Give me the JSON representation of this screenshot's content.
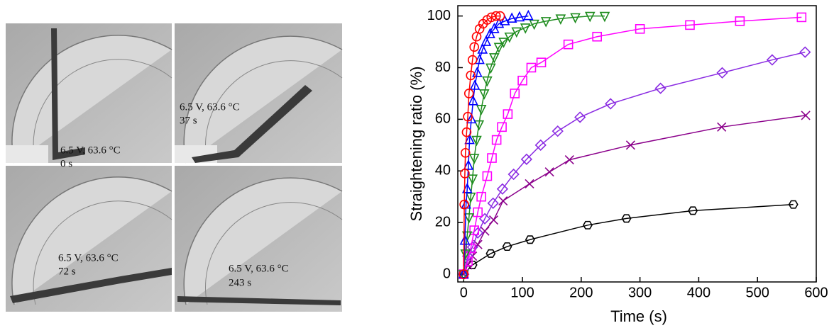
{
  "photos": [
    {
      "caption": "6.5 V, 63.6 °C",
      "time": "0 s"
    },
    {
      "caption": "6.5 V, 63.6 °C",
      "time": "37 s"
    },
    {
      "caption": "6.5 V, 63.6 °C",
      "time": "72 s"
    },
    {
      "caption": "6.5 V, 63.6 °C",
      "time": "243 s"
    }
  ],
  "chart_data": {
    "type": "line",
    "x_label": "Time (s)",
    "y_label": "Straightening ratio (%)",
    "xlim": [
      -10,
      600
    ],
    "ylim": [
      -3,
      104
    ],
    "xticks": [
      0,
      100,
      200,
      300,
      400,
      500,
      600
    ],
    "yticks": [
      0,
      20,
      40,
      60,
      80,
      100
    ],
    "series": [
      {
        "color": "#000000",
        "marker": "hexagon",
        "x": [
          0,
          15,
          46,
          74,
          113,
          211,
          277,
          390,
          561
        ],
        "values": [
          0,
          3.6,
          8,
          10.7,
          13.4,
          19,
          21.6,
          24.6,
          27
        ]
      },
      {
        "color": "#8b008b",
        "marker": "x",
        "x": [
          0,
          7,
          15,
          24,
          36,
          51,
          67,
          112,
          146,
          180,
          284,
          439,
          582
        ],
        "values": [
          0,
          3.6,
          7,
          11.5,
          16.7,
          21,
          28.4,
          35,
          39.6,
          44.3,
          50,
          57,
          61.5
        ]
      },
      {
        "color": "#8a2be2",
        "marker": "diamond",
        "x": [
          0,
          7,
          15,
          24,
          36,
          50,
          66,
          85,
          107,
          131,
          160,
          198,
          250,
          335,
          440,
          525,
          581
        ],
        "values": [
          0,
          7,
          10.5,
          16,
          21.5,
          27.5,
          33,
          38.7,
          44.5,
          50,
          55.4,
          60.8,
          66,
          72,
          78,
          83,
          86
        ]
      },
      {
        "color": "#ff00ff",
        "marker": "square",
        "x": [
          0,
          7,
          12,
          18,
          24,
          30,
          40,
          48,
          56,
          65,
          75,
          87,
          100,
          115,
          132,
          178,
          227,
          300,
          385,
          470,
          575
        ],
        "values": [
          0,
          5,
          10,
          17,
          24,
          30,
          38,
          45,
          52,
          57,
          62,
          70,
          75,
          80,
          82,
          89,
          92,
          95,
          96.5,
          98,
          99.5
        ]
      },
      {
        "color": "#1e8c1e",
        "marker": "triangle-down",
        "x": [
          0,
          3,
          6,
          9,
          12,
          15,
          18,
          22,
          26,
          30,
          35,
          40,
          46,
          52,
          60,
          68,
          78,
          90,
          105,
          120,
          140,
          165,
          190,
          215,
          240
        ],
        "values": [
          0,
          8,
          15,
          22,
          30,
          37,
          45,
          52,
          58,
          64,
          70,
          75,
          80,
          84,
          88,
          90,
          92,
          94,
          95.5,
          97,
          98,
          99,
          99.5,
          100,
          100
        ]
      },
      {
        "color": "#0000ff",
        "marker": "triangle-up",
        "x": [
          0,
          2,
          4,
          6,
          8,
          10,
          13,
          16,
          19,
          23,
          27,
          32,
          38,
          45,
          52,
          60,
          70,
          82,
          95,
          110
        ],
        "values": [
          0,
          13,
          27,
          33,
          42,
          52,
          60,
          67,
          73,
          78,
          83,
          87,
          90,
          93,
          95,
          97,
          98,
          99,
          99.5,
          100
        ]
      },
      {
        "color": "#ff0000",
        "marker": "circle",
        "x": [
          0,
          1,
          2,
          3,
          5,
          7,
          9,
          12,
          15,
          18,
          22,
          27,
          33,
          40,
          47,
          55,
          62
        ],
        "values": [
          0,
          27,
          39,
          47,
          55,
          61,
          70,
          77,
          83,
          88,
          92,
          95,
          97,
          98.5,
          99.5,
          100,
          100
        ]
      }
    ]
  }
}
